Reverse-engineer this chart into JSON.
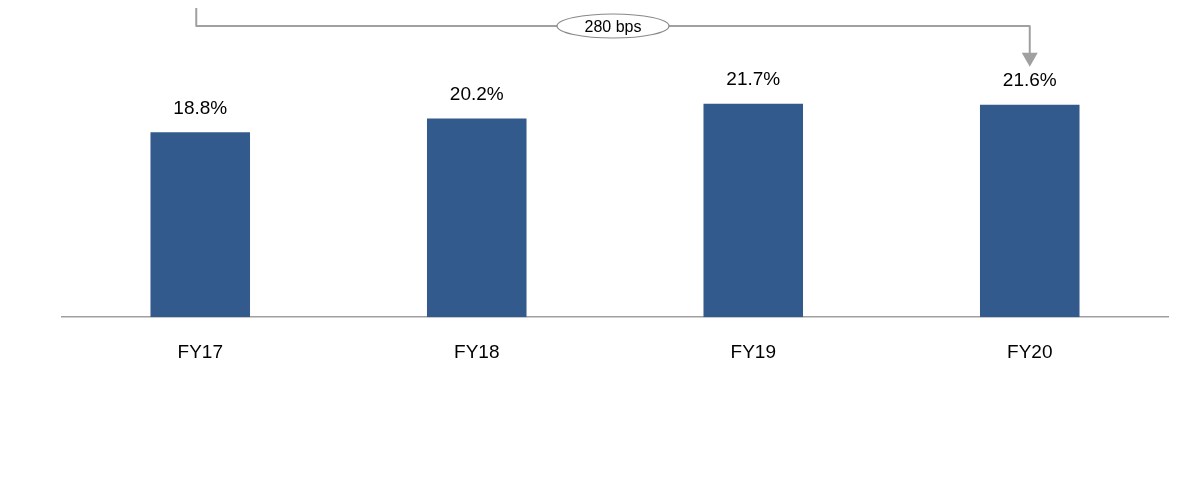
{
  "chart_data": {
    "type": "bar",
    "categories": [
      "FY17",
      "FY18",
      "FY19",
      "FY20"
    ],
    "values": [
      18.8,
      20.2,
      21.7,
      21.6
    ],
    "color": "#335a8c",
    "tick_labels": "x",
    "value_labels": [
      "18.8%",
      "20.2%",
      "21.7%",
      "21.6%"
    ],
    "grid": false,
    "legend": false,
    "annotations": [
      "280 bps"
    ]
  }
}
